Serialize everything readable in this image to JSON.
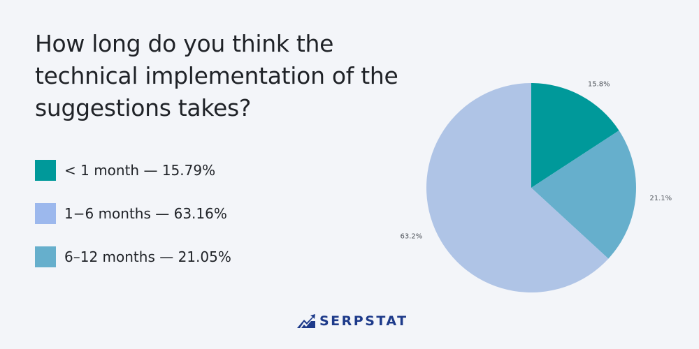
{
  "chart_data": {
    "type": "pie",
    "title": "How long do you think the technical implementation of the suggestions takes?",
    "slices": [
      {
        "label": "< 1 month",
        "value": 15.79,
        "display": "15.8%",
        "legend": "< 1 month — 15.79%",
        "color": "#00999a",
        "legend_color": "#00999a"
      },
      {
        "label": "6–12 months",
        "value": 21.05,
        "display": "21.1%",
        "legend": "6–12 months — 21.05%",
        "color": "#66afcc",
        "legend_color": "#66afcc"
      },
      {
        "label": "1–6 months",
        "value": 63.16,
        "display": "63.2%",
        "legend": "1−6 months — 63.16%",
        "color": "#afc4e6",
        "legend_color": "#9cb8ed"
      }
    ],
    "legend_order": [
      0,
      2,
      1
    ],
    "legend_placement": "left"
  },
  "brand": {
    "name": "SERPSTAT",
    "logo_icon": "serpstat-logo-icon",
    "color": "#1d3a8a"
  }
}
